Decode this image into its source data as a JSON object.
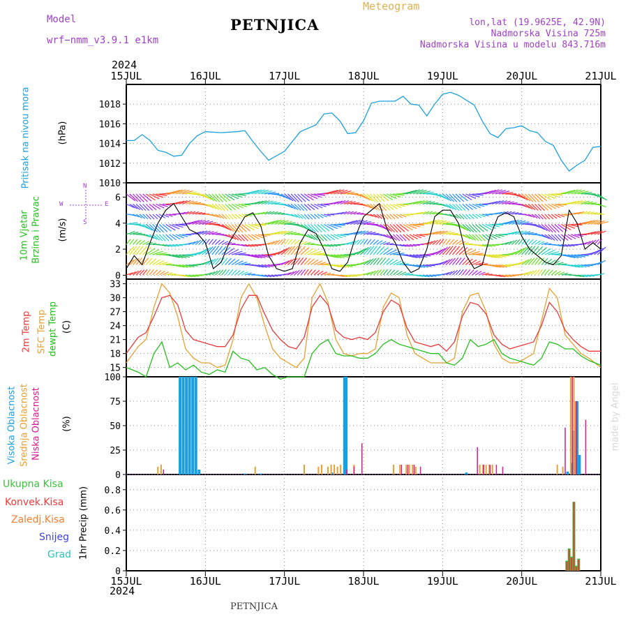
{
  "header": {
    "model_label": "Model",
    "model_name": "wrf−nmm_v3.9.1  e1km",
    "station": "PETNJICA",
    "meteogram": "Meteogram",
    "lonlat": "lon,lat (19.9625E, 42.9N)",
    "elevation": "Nadmorska Visina 725m",
    "elevation_model": "Nadmorska Visina u modelu 843.716m",
    "year_top": "2024",
    "year_bottom": "2024",
    "footer_station": "PETNJICA",
    "credit": "made by Angel"
  },
  "colors": {
    "pressure": "#1aa0e0",
    "temp2m": "#e83a3a",
    "sfc": "#e8a030",
    "dewpt": "#22c01a",
    "high_cloud": "#1aa0e0",
    "mid_cloud": "#e8a030",
    "low_cloud": "#d81890",
    "total_precip": "#3cc23c",
    "conv_precip": "#e83a3a",
    "frozen": "#f08030",
    "snow": "#4040e0",
    "hail": "#30c0c0",
    "labels_purple": "#a040c8",
    "meteogram_gold": "#e0b050"
  },
  "chart_data": [
    {
      "type": "line",
      "panel": "pressure",
      "title": "",
      "ylabel": [
        "Pritisak na nivou mora",
        "(hPa)"
      ],
      "ylim": [
        1010,
        1020
      ],
      "yticks": [
        1010,
        1012,
        1014,
        1016,
        1018
      ],
      "grid": true,
      "x_days": [
        0,
        0.1,
        0.2,
        0.3,
        0.4,
        0.5,
        0.6,
        0.7,
        0.8,
        0.9,
        1.0,
        1.2,
        1.4,
        1.5,
        1.6,
        1.7,
        1.8,
        2.0,
        2.2,
        2.4,
        2.5,
        2.6,
        2.7,
        2.8,
        2.9,
        3.0,
        3.1,
        3.2,
        3.4,
        3.5,
        3.6,
        3.7,
        3.8,
        3.9,
        4.0,
        4.1,
        4.2,
        4.4,
        4.5,
        4.6,
        4.7,
        4.8,
        4.9,
        5.0,
        5.1,
        5.2,
        5.3,
        5.4,
        5.5,
        5.6,
        5.7,
        5.8,
        5.9,
        6.0
      ],
      "series": [
        {
          "values": [
            1014.3,
            1014.3,
            1014.9,
            1014.3,
            1013.3,
            1013.1,
            1012.7,
            1012.8,
            1014.0,
            1014.8,
            1015.2,
            1015.1,
            1015.2,
            1015.3,
            1014.2,
            1013.2,
            1012.3,
            1013.2,
            1015.2,
            1015.9,
            1017.0,
            1017.1,
            1016.3,
            1015.0,
            1015.1,
            1016.3,
            1018.1,
            1018.3,
            1018.3,
            1018.8,
            1018.0,
            1017.9,
            1016.8,
            1018.0,
            1019.0,
            1019.2,
            1018.9,
            1017.9,
            1016.3,
            1015.0,
            1014.6,
            1015.5,
            1015.6,
            1015.8,
            1015.3,
            1015.1,
            1014.2,
            1013.8,
            1012.3,
            1011.2,
            1011.8,
            1012.3,
            1013.6,
            1013.7
          ]
        }
      ]
    },
    {
      "type": "line",
      "panel": "wind",
      "title": "",
      "ylabel": [
        "10m Vjetar",
        "Brzina i Pravac",
        "(m/s)"
      ],
      "compass": [
        "N",
        "W",
        "E",
        "S"
      ],
      "ylim": [
        -0.3,
        7.1
      ],
      "yticks": [
        0,
        2,
        4,
        6
      ],
      "grid": true,
      "x_days": [
        0,
        0.1,
        0.2,
        0.3,
        0.4,
        0.5,
        0.6,
        0.7,
        0.8,
        0.9,
        1.0,
        1.1,
        1.2,
        1.3,
        1.4,
        1.5,
        1.6,
        1.7,
        1.8,
        1.9,
        2.0,
        2.1,
        2.2,
        2.3,
        2.4,
        2.5,
        2.6,
        2.7,
        2.8,
        2.9,
        3.0,
        3.1,
        3.2,
        3.3,
        3.4,
        3.5,
        3.6,
        3.7,
        3.8,
        3.9,
        4.0,
        4.1,
        4.2,
        4.3,
        4.4,
        4.5,
        4.6,
        4.7,
        4.8,
        4.9,
        5.0,
        5.1,
        5.2,
        5.3,
        5.4,
        5.5,
        5.6,
        5.7,
        5.8,
        5.9,
        6.0
      ],
      "series": [
        {
          "name": "speed",
          "values": [
            0.5,
            1.5,
            0.8,
            2.5,
            4.0,
            5.0,
            5.5,
            4.5,
            3.5,
            3.2,
            2.5,
            0.5,
            1.0,
            2.5,
            3.5,
            4.5,
            4.8,
            3.8,
            1.5,
            0.5,
            0.3,
            0.5,
            2.5,
            3.5,
            3.2,
            2.0,
            0.5,
            0.3,
            1.0,
            3.0,
            4.5,
            5.0,
            5.5,
            3.5,
            2.5,
            1.0,
            0.2,
            0.5,
            2.0,
            4.5,
            5.0,
            5.0,
            4.0,
            1.5,
            0.5,
            0.8,
            3.0,
            4.5,
            4.8,
            4.5,
            3.0,
            2.0,
            1.5,
            1.0,
            0.8,
            1.5,
            5.0,
            4.0,
            2.0,
            2.5,
            2.0
          ]
        }
      ],
      "wind_arrows": "multicolor direction arrows at 10 levels per hour"
    },
    {
      "type": "line",
      "panel": "temperature",
      "title": "",
      "ylabel": [
        "2m Temp",
        "SFC Temp",
        "dewpt Temp",
        "(C)"
      ],
      "ylim": [
        13,
        34
      ],
      "yticks": [
        15,
        18,
        21,
        24,
        27,
        30,
        33
      ],
      "grid": true,
      "x_days": [
        0,
        0.15,
        0.25,
        0.35,
        0.45,
        0.55,
        0.65,
        0.75,
        0.85,
        0.95,
        1.05,
        1.15,
        1.25,
        1.35,
        1.45,
        1.55,
        1.65,
        1.75,
        1.85,
        1.95,
        2.05,
        2.15,
        2.25,
        2.35,
        2.45,
        2.55,
        2.65,
        2.75,
        2.85,
        2.95,
        3.05,
        3.15,
        3.25,
        3.35,
        3.45,
        3.55,
        3.65,
        3.75,
        3.85,
        3.95,
        4.05,
        4.15,
        4.25,
        4.35,
        4.45,
        4.55,
        4.65,
        4.75,
        4.85,
        4.95,
        5.05,
        5.15,
        5.25,
        5.35,
        5.45,
        5.55,
        5.65,
        5.75,
        5.85,
        6.0
      ],
      "series": [
        {
          "name": "2m Temp",
          "values": [
            18,
            21.5,
            22.5,
            26,
            30,
            30.5,
            28.5,
            23,
            21,
            20.5,
            20,
            19.5,
            19.5,
            22,
            27.5,
            30.5,
            30.5,
            26.5,
            23,
            21,
            19.5,
            19,
            21.5,
            28,
            30.5,
            28.5,
            23,
            21.5,
            21,
            21.5,
            21,
            22.5,
            27,
            29.5,
            28.5,
            23.5,
            20.5,
            20,
            19.5,
            20,
            18.5,
            20.5,
            26,
            29,
            28.5,
            26.5,
            22,
            20,
            19,
            19.5,
            20,
            20.5,
            24,
            29,
            27,
            23,
            21,
            19.5,
            18.5,
            18.5
          ]
        },
        {
          "name": "SFC Temp",
          "values": [
            16,
            19.5,
            21,
            28,
            33,
            31,
            26,
            19,
            17,
            16,
            16,
            15,
            15.5,
            21,
            30,
            33,
            30,
            24,
            19,
            17,
            16,
            15,
            17,
            30,
            33,
            29,
            21,
            18,
            17.5,
            18,
            18,
            19,
            28,
            31,
            30,
            22,
            18,
            17,
            16,
            16,
            16,
            17,
            27,
            30.5,
            31,
            27,
            20,
            17,
            16,
            16,
            17,
            18,
            25,
            32,
            30,
            22,
            20,
            18,
            17,
            15
          ]
        },
        {
          "name": "dewpt Temp",
          "values": [
            15,
            14,
            13,
            18,
            20.5,
            15,
            16,
            14.5,
            15.5,
            14,
            13.5,
            14.5,
            14,
            18.5,
            17,
            16.5,
            14.5,
            15,
            13.5,
            12.5,
            13,
            13,
            13,
            18,
            20,
            21,
            18,
            17.5,
            17.5,
            17,
            17,
            18,
            20,
            21,
            20,
            19.5,
            19,
            18.5,
            18,
            18,
            16,
            15.5,
            17,
            21,
            19.5,
            20,
            21,
            18,
            17,
            16.5,
            16,
            15.5,
            17,
            20.5,
            20,
            19,
            19,
            17.5,
            16.5,
            15.5
          ]
        }
      ]
    },
    {
      "type": "bar",
      "panel": "cloud",
      "title": "",
      "ylabel": [
        "Visoka Oblacnost",
        "Srednja Oblacnost",
        "Niska Oblacnost",
        "(%)"
      ],
      "ylim": [
        0,
        100
      ],
      "yticks": [
        0,
        25,
        50,
        75,
        100
      ],
      "grid": true,
      "series": [
        {
          "name": "Visoka Oblacnost",
          "x_days": [
            0.68,
            0.72,
            0.76,
            0.8,
            0.84,
            0.88,
            0.92,
            1.5,
            1.7,
            2.6,
            2.76,
            2.78,
            4.3,
            5.58,
            5.64,
            5.66,
            5.7,
            5.73
          ],
          "values": [
            100,
            100,
            100,
            100,
            100,
            100,
            5,
            1,
            1,
            2,
            100,
            100,
            2,
            3,
            12,
            45,
            75,
            20
          ]
        },
        {
          "name": "Srednja Oblacnost",
          "x_days": [
            0.4,
            0.44,
            1.63,
            2.25,
            2.43,
            2.47,
            2.55,
            2.59,
            2.63,
            2.67,
            2.71,
            2.88,
            3.38,
            3.46,
            3.54,
            3.58,
            3.62,
            3.66,
            4.47,
            4.51,
            4.55,
            4.59,
            4.63,
            5.45,
            5.52,
            5.62,
            5.66,
            5.68
          ],
          "values": [
            8,
            10,
            8,
            10,
            8,
            10,
            8,
            10,
            10,
            8,
            10,
            10,
            10,
            10,
            10,
            10,
            10,
            8,
            10,
            10,
            10,
            10,
            10,
            10,
            8,
            100,
            100,
            75
          ]
        },
        {
          "name": "Niska Oblacnost",
          "x_days": [
            0.47,
            2.79,
            2.88,
            2.98,
            3.48,
            3.56,
            3.64,
            3.72,
            4.44,
            4.52,
            4.6,
            4.68,
            4.76,
            5.55,
            5.64,
            5.69,
            5.81
          ],
          "values": [
            5,
            5,
            8,
            32,
            10,
            10,
            10,
            8,
            28,
            10,
            10,
            10,
            8,
            48,
            100,
            75,
            56
          ]
        }
      ]
    },
    {
      "type": "bar",
      "panel": "precipitation",
      "title": "",
      "ylabel": [
        "1hr Precip (mm)"
      ],
      "legend": [
        "Ukupna  Kisa",
        "Konvek.Kisa",
        "Zaledj.Kisa",
        "Snijeg",
        "Grad"
      ],
      "ylim": [
        0,
        0.95
      ],
      "yticks": [
        0,
        0.2,
        0.4,
        0.6,
        0.8
      ],
      "grid": true,
      "x_days": [
        5.57,
        5.6,
        5.63,
        5.66,
        5.69,
        5.72
      ],
      "series": [
        {
          "name": "Ukupna  Kisa",
          "values": [
            0.1,
            0.22,
            0.14,
            0.68,
            0.05,
            0.12
          ]
        },
        {
          "name": "Konvek.Kisa",
          "values": [
            0.09,
            0.21,
            0.13,
            0.68,
            0.04,
            0.11
          ]
        }
      ]
    }
  ],
  "x_axis": {
    "labels": [
      "15JUL",
      "16JUL",
      "17JUL",
      "18JUL",
      "19JUL",
      "20JUL",
      "21JUL"
    ],
    "range_days": [
      0,
      6
    ]
  }
}
